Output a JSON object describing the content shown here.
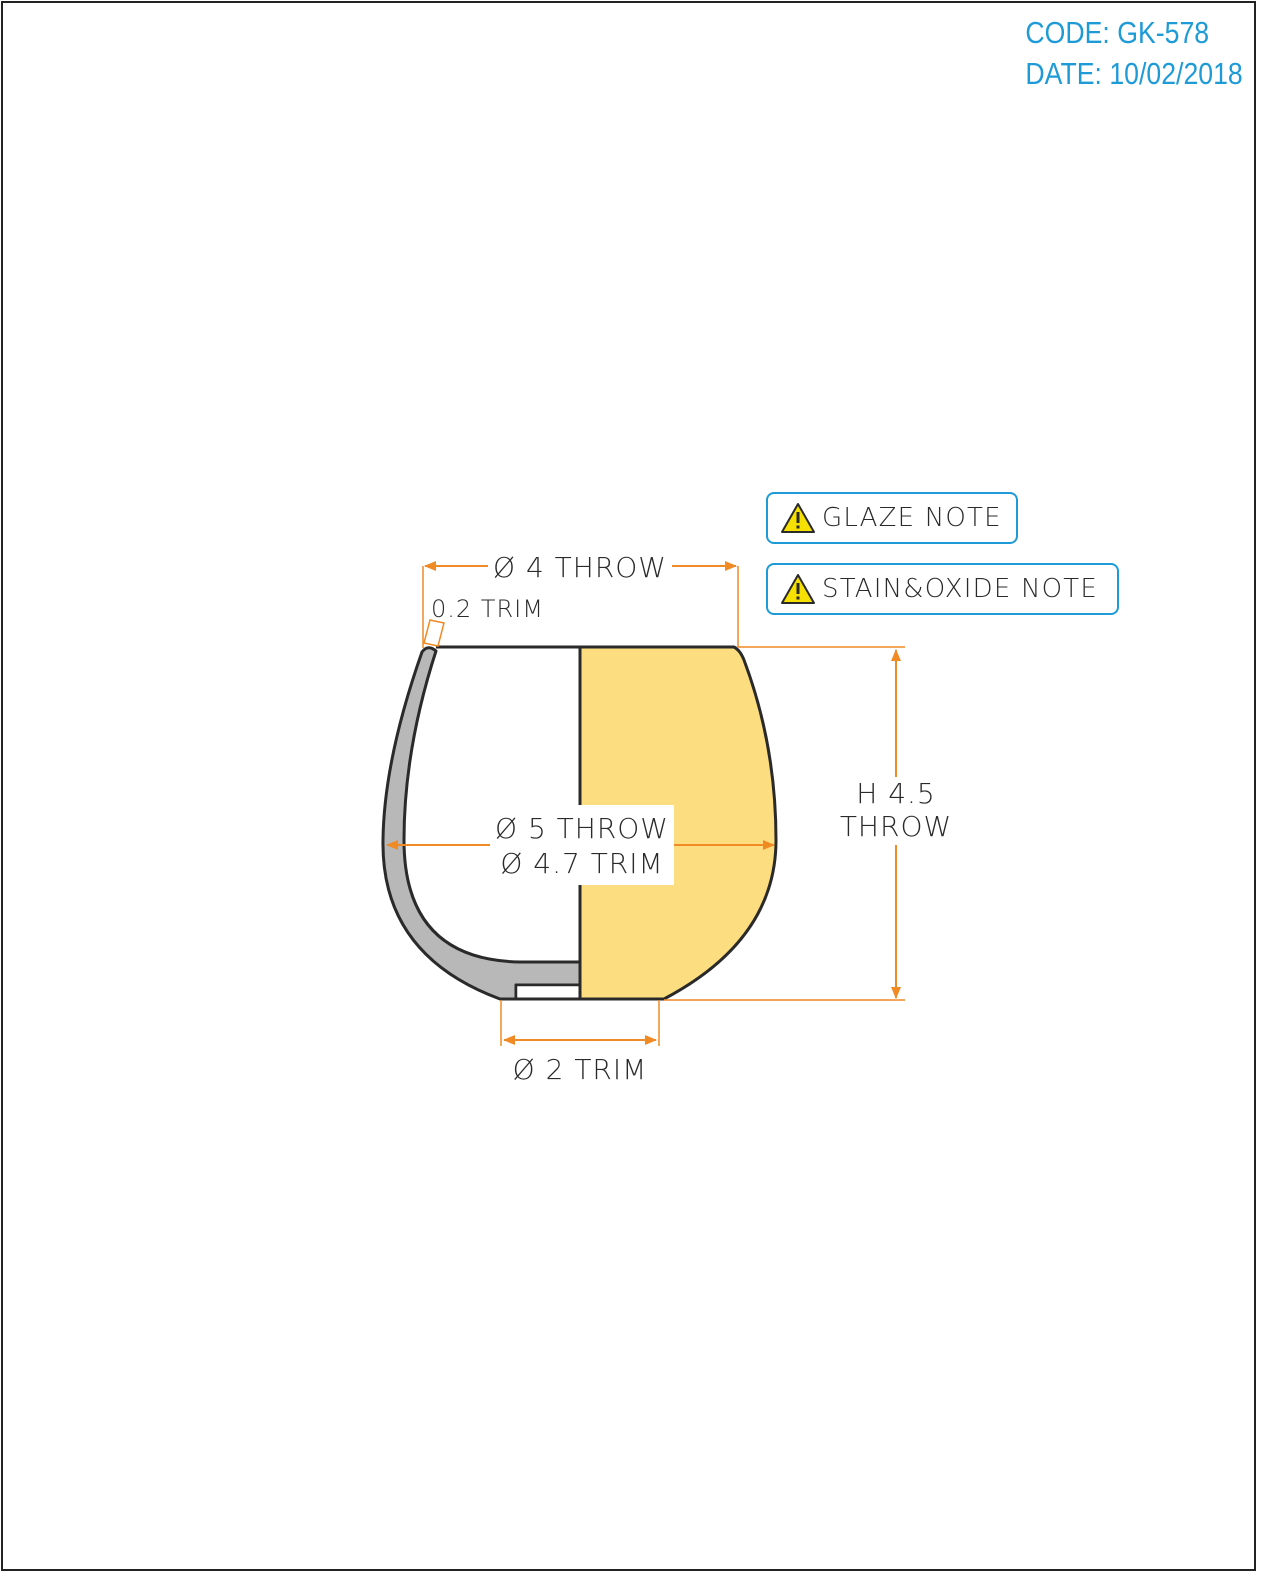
{
  "header": {
    "code": "CODE: GK-578",
    "date": "DATE: 10/02/2018"
  },
  "notes": {
    "glaze": "GLAZE NOTE",
    "stain_oxide": "STAIN&OXIDE NOTE"
  },
  "icons": {
    "warning": "warning-triangle-icon"
  },
  "dimensions": {
    "top_diameter": "Ø 4 THROW",
    "wall_thickness": "0.2 TRIM",
    "max_diameter_throw": "Ø 5 THROW",
    "max_diameter_trim": "Ø 4.7 TRIM",
    "height_line1": "H 4.5",
    "height_line2": "THROW",
    "foot_diameter": "Ø 2 TRIM"
  },
  "colors": {
    "dimension": "#f08a24",
    "header": "#1e9bd7",
    "note_border": "#1e9bd7",
    "body_fill": "#fcdd80",
    "section_fill": "#b8b8b8",
    "outline": "#2a2a2a",
    "warning_fill": "#f6e000"
  }
}
